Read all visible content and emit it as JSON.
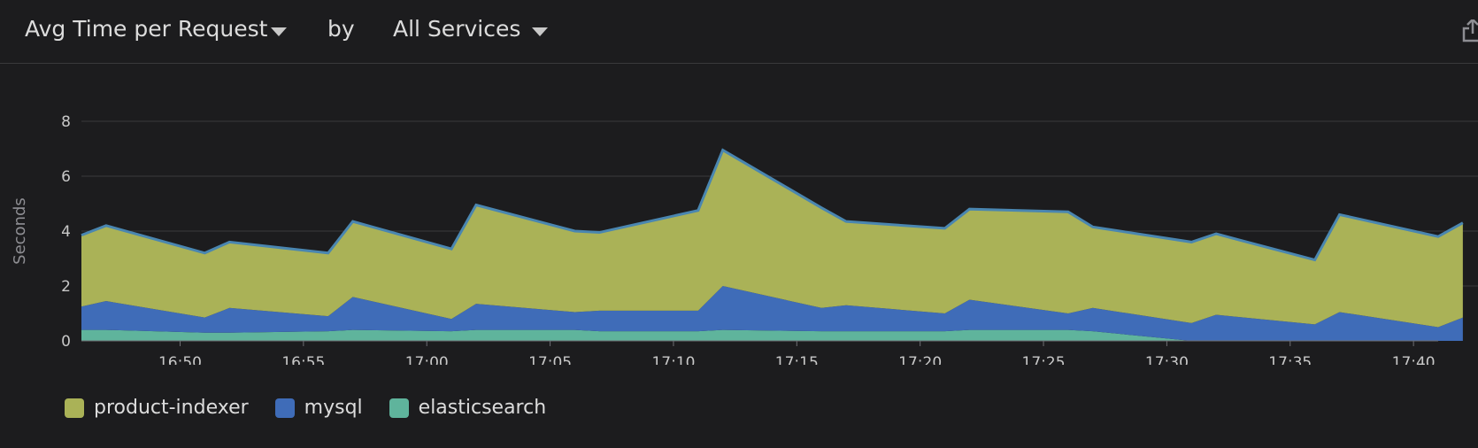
{
  "header": {
    "metric_label": "Avg Time per Request",
    "by_label": "by",
    "group_label": "All Services"
  },
  "chart_data": {
    "type": "area",
    "stacked": true,
    "ylabel": "Seconds",
    "xlabel": "",
    "ylim": [
      0,
      8
    ],
    "yticks": [
      0,
      2,
      4,
      6,
      8
    ],
    "x_range": [
      "16:46",
      "17:41"
    ],
    "x_tick_labels": [
      "16:50",
      "16:55",
      "17:00",
      "17:05",
      "17:10",
      "17:15",
      "17:20",
      "17:25",
      "17:30",
      "17:35",
      "17:40"
    ],
    "x": [
      "16:46",
      "16:47",
      "16:51",
      "16:52",
      "16:56",
      "16:57",
      "17:01",
      "17:02",
      "17:06",
      "17:07",
      "17:11",
      "17:12",
      "17:16",
      "17:17",
      "17:21",
      "17:22",
      "17:26",
      "17:27",
      "17:31",
      "17:32",
      "17:36",
      "17:37",
      "17:41",
      "17:42"
    ],
    "series": [
      {
        "name": "elasticsearch",
        "color": "#5fb49c",
        "values": [
          0.4,
          0.4,
          0.3,
          0.3,
          0.35,
          0.4,
          0.35,
          0.4,
          0.4,
          0.35,
          0.35,
          0.4,
          0.35,
          0.35,
          0.35,
          0.4,
          0.4,
          0.35,
          0.0,
          0.0,
          0.0,
          0.0,
          0.0,
          0.0
        ]
      },
      {
        "name": "mysql",
        "color": "#3f6cb8",
        "values": [
          0.85,
          1.05,
          0.55,
          0.9,
          0.55,
          1.2,
          0.45,
          0.95,
          0.65,
          0.75,
          0.75,
          1.6,
          0.85,
          0.95,
          0.65,
          1.1,
          0.6,
          0.85,
          0.65,
          0.95,
          0.6,
          1.05,
          0.5,
          0.85
        ]
      },
      {
        "name": "product-indexer",
        "color": "#aab257",
        "values": [
          2.6,
          2.75,
          2.35,
          2.4,
          2.3,
          2.75,
          2.55,
          3.6,
          2.95,
          2.85,
          3.65,
          4.95,
          3.65,
          3.05,
          3.1,
          3.3,
          3.7,
          2.95,
          2.95,
          2.95,
          2.35,
          3.55,
          3.3,
          3.45
        ]
      }
    ]
  },
  "legend": [
    {
      "label": "product-indexer",
      "color": "#aab257"
    },
    {
      "label": "mysql",
      "color": "#3f6cb8"
    },
    {
      "label": "elasticsearch",
      "color": "#5fb49c"
    }
  ]
}
